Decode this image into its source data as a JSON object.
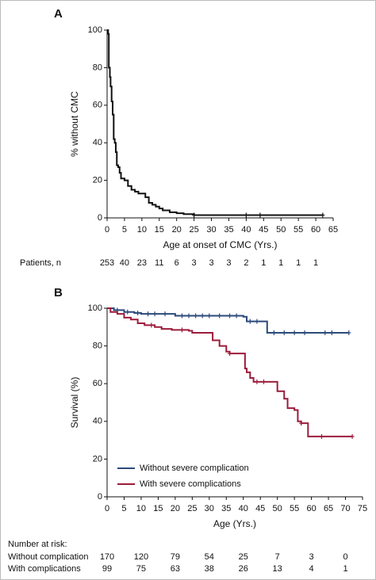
{
  "chart_data": [
    {
      "type": "line",
      "panel": "A",
      "drawstyle": "steps-post",
      "ylabel": "% without CMC",
      "xlabel": "Age at onset of CMC (Yrs.)",
      "xlim": [
        0,
        65
      ],
      "xticks": [
        0,
        5,
        10,
        15,
        20,
        25,
        30,
        35,
        40,
        45,
        50,
        55,
        60,
        65
      ],
      "ylim": [
        0,
        100
      ],
      "yticks": [
        0,
        20,
        40,
        60,
        80,
        100
      ],
      "series": [
        {
          "color": "#111111",
          "x": [
            0,
            0.3,
            0.5,
            0.8,
            1,
            1.3,
            1.6,
            1.9,
            2.2,
            2.5,
            2.8,
            3.2,
            3.6,
            4,
            5,
            6,
            7,
            8,
            9,
            11,
            12,
            13,
            14,
            15,
            16,
            18,
            20,
            22,
            25,
            62
          ],
          "values": [
            100,
            98,
            80,
            75,
            70,
            62,
            55,
            42,
            40,
            35,
            28,
            27,
            24,
            21,
            20,
            17,
            15,
            14,
            13,
            11,
            8,
            7,
            6,
            5,
            4,
            3,
            2.5,
            2,
            1.5,
            1.5
          ],
          "censored": {
            "x": [
              25,
              40,
              44,
              62
            ],
            "values": [
              1.5,
              1.5,
              1.5,
              1.5
            ]
          }
        }
      ],
      "risk_table": {
        "rows": [
          {
            "name": "Patients, n",
            "values": [
              253,
              40,
              23,
              11,
              6,
              3,
              3,
              3,
              2,
              1,
              1,
              1,
              1
            ]
          }
        ]
      }
    },
    {
      "type": "line",
      "panel": "B",
      "drawstyle": "steps-post",
      "ylabel": "Survival (%)",
      "xlabel": "Age (Yrs.)",
      "xlim": [
        0,
        75
      ],
      "xticks": [
        0,
        5,
        10,
        15,
        20,
        25,
        30,
        35,
        40,
        45,
        50,
        55,
        60,
        65,
        70,
        75
      ],
      "ylim": [
        0,
        100
      ],
      "yticks": [
        0,
        20,
        40,
        60,
        80,
        100
      ],
      "legend": "lower left",
      "series": [
        {
          "name": "Without severe complication",
          "color": "#2b4a7a",
          "x": [
            0,
            2,
            5,
            8,
            10,
            20,
            40,
            41,
            47,
            71
          ],
          "values": [
            100,
            99,
            98,
            97.5,
            97,
            96,
            95.5,
            93,
            87,
            87
          ],
          "censored": {
            "x": [
              3,
              6,
              9,
              12,
              14,
              17,
              22,
              24,
              26,
              28,
              30,
              33,
              36,
              38,
              42,
              44,
              49,
              52,
              55,
              58,
              64,
              66,
              71
            ],
            "values": [
              99,
              98,
              97.5,
              97,
              97,
              97,
              96,
              96,
              96,
              96,
              96,
              96,
              96,
              96,
              93,
              93,
              87,
              87,
              87,
              87,
              87,
              87,
              87
            ]
          }
        },
        {
          "name": "With severe complications",
          "color": "#9c1c3c",
          "x": [
            0,
            1,
            3,
            5,
            7,
            9,
            11,
            14,
            16,
            19,
            24,
            25,
            31,
            33,
            35,
            36,
            40.5,
            41,
            42,
            43,
            50,
            52,
            53,
            55,
            56,
            57,
            59,
            72
          ],
          "values": [
            100,
            98,
            97,
            95,
            94,
            92,
            91,
            90,
            89,
            88.5,
            88,
            87,
            83,
            80,
            77,
            76,
            68,
            66,
            63,
            61,
            56,
            52,
            47,
            46,
            40,
            39,
            32,
            32
          ],
          "censored": {
            "x": [
              13,
              22,
              36,
              44,
              46,
              57,
              63,
              72
            ],
            "values": [
              91,
              88.5,
              76,
              61,
              61,
              39,
              32,
              32
            ]
          }
        }
      ],
      "risk_table": {
        "title": "Number at risk:",
        "rows": [
          {
            "name": "Without complication",
            "values": [
              170,
              120,
              79,
              54,
              25,
              7,
              3,
              0
            ]
          },
          {
            "name": "With complications",
            "values": [
              99,
              75,
              63,
              38,
              26,
              13,
              4,
              1
            ]
          }
        ]
      }
    }
  ]
}
